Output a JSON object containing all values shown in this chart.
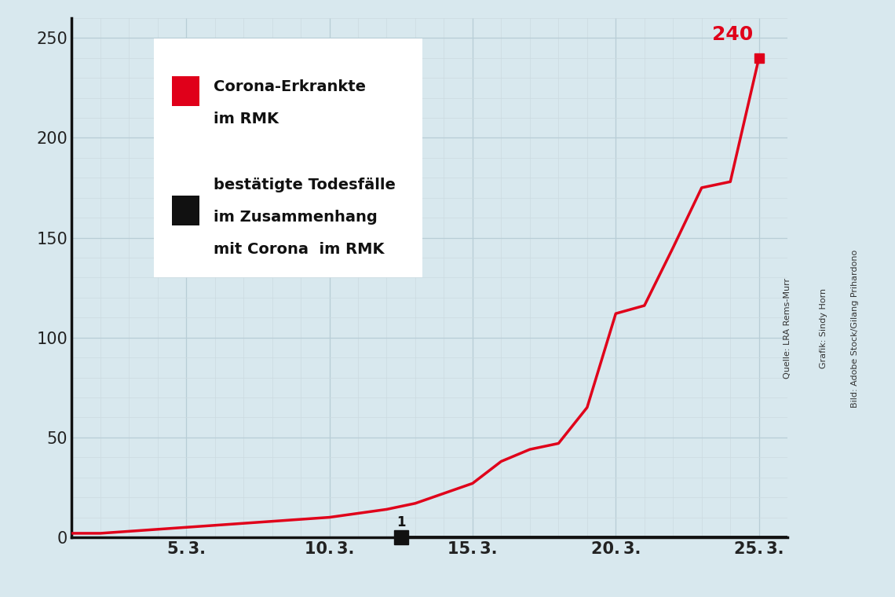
{
  "corona_dates": [
    1,
    2,
    3,
    4,
    5,
    6,
    7,
    8,
    9,
    10,
    11,
    12,
    13,
    14,
    15,
    16,
    17,
    18,
    19,
    20,
    21,
    22,
    23,
    24,
    25
  ],
  "corona_values": [
    2,
    2,
    3,
    4,
    5,
    6,
    7,
    8,
    9,
    10,
    12,
    14,
    17,
    22,
    27,
    38,
    44,
    47,
    65,
    112,
    116,
    145,
    175,
    178,
    240
  ],
  "death_date": 12.5,
  "death_label": "1",
  "last_value_label": "240",
  "x_tick_positions": [
    5,
    10,
    15,
    20,
    25
  ],
  "x_tick_labels": [
    "5. 3.",
    "10. 3.",
    "15. 3.",
    "20. 3.",
    "25. 3."
  ],
  "y_ticks": [
    0,
    50,
    100,
    150,
    200,
    250
  ],
  "ylim": [
    0,
    260
  ],
  "xlim": [
    1,
    26
  ],
  "line_color": "#e0001a",
  "line_width": 2.5,
  "death_color": "#111111",
  "bg_color": "#d8e8ee",
  "grid_color_major": "#b8cdd6",
  "grid_color_minor": "#ccdae0",
  "legend_label1_line1": "Corona-Erkrankte",
  "legend_label1_line2": "im RMK",
  "legend_label2_line1": "bestätigte Todesfälle",
  "legend_label2_line2": "im Zusammenhang",
  "legend_label2_line3": "mit Corona  im RMK",
  "credit_left": "Quelle: LRA Rems-Murr",
  "credit_mid": "Grafik: Sindy Horn",
  "credit_right": "Bild: Adobe Stock/Gilang Prihardono"
}
